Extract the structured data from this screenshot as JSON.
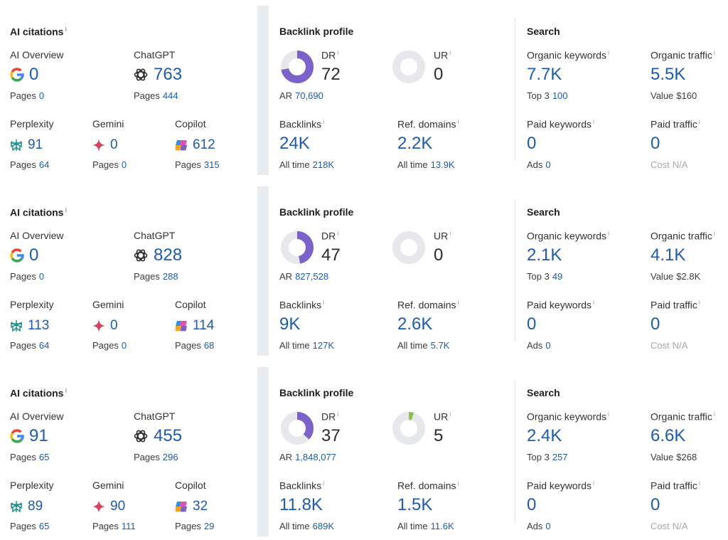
{
  "labels": {
    "ai_citations": "AI citations",
    "ai_overview": "AI Overview",
    "chatgpt": "ChatGPT",
    "perplexity": "Perplexity",
    "gemini": "Gemini",
    "copilot": "Copilot",
    "pages": "Pages",
    "backlink_profile": "Backlink profile",
    "dr": "DR",
    "ur": "UR",
    "ar": "AR",
    "backlinks": "Backlinks",
    "ref_domains": "Ref. domains",
    "all_time": "All time",
    "search": "Search",
    "organic_keywords": "Organic keywords",
    "organic_traffic": "Organic traffic",
    "top3": "Top 3",
    "value": "Value",
    "paid_keywords": "Paid keywords",
    "paid_traffic": "Paid traffic",
    "ads": "Ads",
    "cost": "Cost",
    "info": "i"
  },
  "colors": {
    "accent": "#1d5bb0",
    "dr_fill": "#7b61c9",
    "ur_fill": "#8bc34a",
    "ring_bg": "#e6e8eb",
    "divider": "#e9ecef"
  },
  "icons": {
    "ai_overview": "google-g-icon",
    "chatgpt": "openai-knot-icon",
    "perplexity": "perplexity-icon",
    "gemini": "gemini-sparkle-icon",
    "copilot": "copilot-icon"
  },
  "rows": [
    {
      "ai": {
        "ai_overview": {
          "value": "0",
          "pages": "0"
        },
        "chatgpt": {
          "value": "763",
          "pages": "444"
        },
        "perplexity": {
          "value": "91",
          "pages": "64"
        },
        "gemini": {
          "value": "0",
          "pages": "0"
        },
        "copilot": {
          "value": "612",
          "pages": "315"
        }
      },
      "backlink": {
        "dr": "72",
        "dr_fraction": 0.72,
        "ur": "0",
        "ur_fraction": 0.0,
        "ar": "70,690",
        "backlinks": "24K",
        "backlinks_all_time": "218K",
        "ref_domains": "2.2K",
        "ref_domains_all_time": "13.9K"
      },
      "search": {
        "organic_keywords": "7.7K",
        "top3": "100",
        "organic_traffic": "5.5K",
        "value": "$160",
        "paid_keywords": "0",
        "ads": "0",
        "paid_traffic": "0",
        "cost": "N/A"
      }
    },
    {
      "ai": {
        "ai_overview": {
          "value": "0",
          "pages": "0"
        },
        "chatgpt": {
          "value": "828",
          "pages": "288"
        },
        "perplexity": {
          "value": "113",
          "pages": "64"
        },
        "gemini": {
          "value": "0",
          "pages": "0"
        },
        "copilot": {
          "value": "114",
          "pages": "68"
        }
      },
      "backlink": {
        "dr": "47",
        "dr_fraction": 0.47,
        "ur": "0",
        "ur_fraction": 0.0,
        "ar": "827,528",
        "backlinks": "9K",
        "backlinks_all_time": "127K",
        "ref_domains": "2.6K",
        "ref_domains_all_time": "5.7K"
      },
      "search": {
        "organic_keywords": "2.1K",
        "top3": "49",
        "organic_traffic": "4.1K",
        "value": "$2.8K",
        "paid_keywords": "0",
        "ads": "0",
        "paid_traffic": "0",
        "cost": "N/A"
      }
    },
    {
      "ai": {
        "ai_overview": {
          "value": "91",
          "pages": "65"
        },
        "chatgpt": {
          "value": "455",
          "pages": "296"
        },
        "perplexity": {
          "value": "89",
          "pages": "65"
        },
        "gemini": {
          "value": "90",
          "pages": "111"
        },
        "copilot": {
          "value": "32",
          "pages": "29"
        }
      },
      "backlink": {
        "dr": "37",
        "dr_fraction": 0.37,
        "ur": "5",
        "ur_fraction": 0.05,
        "ar": "1,848,077",
        "backlinks": "11.8K",
        "backlinks_all_time": "689K",
        "ref_domains": "1.5K",
        "ref_domains_all_time": "11.6K"
      },
      "search": {
        "organic_keywords": "2.4K",
        "top3": "257",
        "organic_traffic": "6.6K",
        "value": "$268",
        "paid_keywords": "0",
        "ads": "0",
        "paid_traffic": "0",
        "cost": "N/A"
      }
    }
  ]
}
